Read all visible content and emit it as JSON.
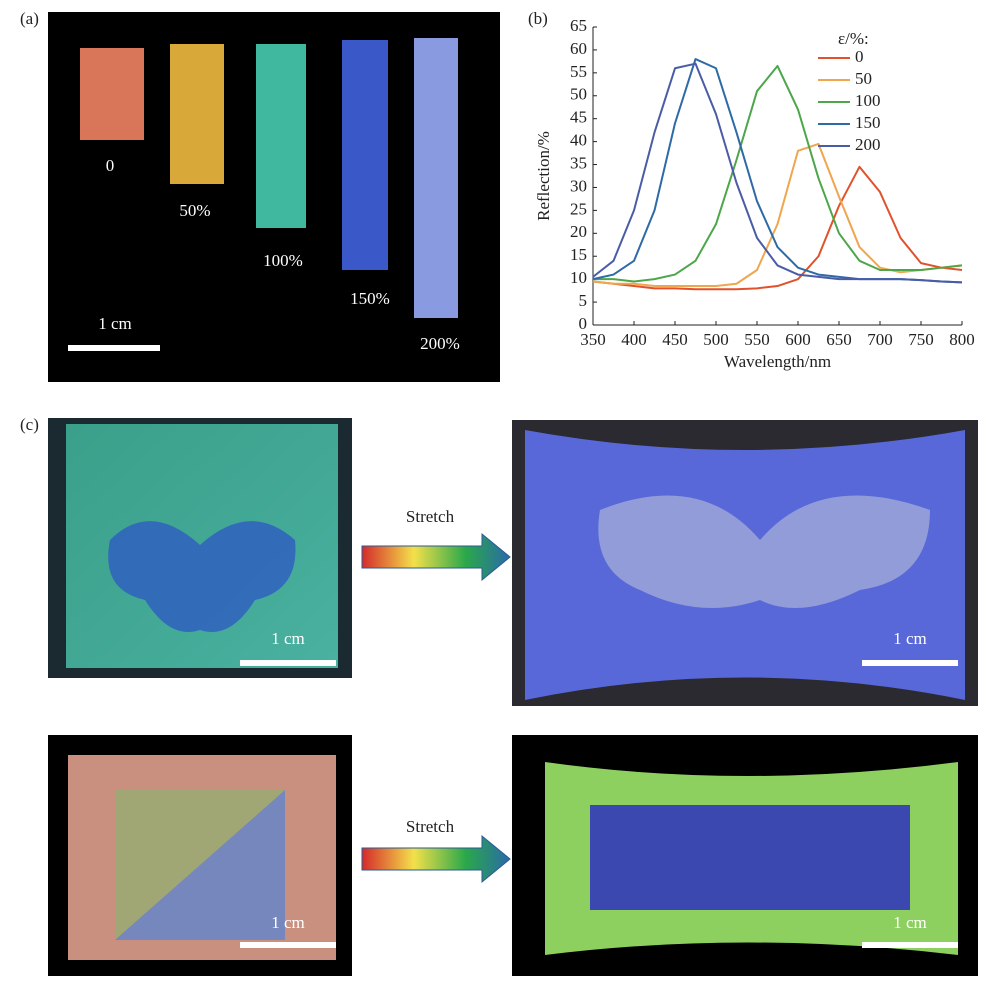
{
  "panel_labels": [
    "(a)",
    "(b)",
    "(c)"
  ],
  "panel_a": {
    "strain_labels": [
      "0",
      "50%",
      "100%",
      "150%",
      "200%"
    ],
    "scale_label": "1 cm"
  },
  "panel_c": {
    "arrow_labels": [
      "Stretch",
      "Stretch"
    ],
    "scale_labels": [
      "1 cm",
      "1 cm",
      "1 cm",
      "1 cm"
    ]
  },
  "chart_data": {
    "type": "line",
    "x_label": "Wavelength/nm",
    "y_label": "Reflection/%",
    "legend_title": "ε/%:",
    "x": [
      350,
      375,
      400,
      425,
      450,
      475,
      500,
      525,
      550,
      575,
      600,
      625,
      650,
      675,
      700,
      725,
      750,
      775,
      800
    ],
    "series": [
      {
        "name": "0",
        "color": "#e0522c",
        "values": [
          9.5,
          9,
          8.5,
          8,
          8,
          7.8,
          7.8,
          7.8,
          8,
          8.5,
          10,
          15,
          26,
          34.5,
          29,
          19,
          13.5,
          12.5,
          12
        ]
      },
      {
        "name": "50",
        "color": "#f0a54f",
        "values": [
          9.5,
          9,
          9,
          8.5,
          8.5,
          8.5,
          8.5,
          9,
          12,
          22,
          38,
          39.5,
          28,
          17,
          12.5,
          11.5,
          12,
          12.5,
          13
        ]
      },
      {
        "name": "100",
        "color": "#4ca64a",
        "values": [
          10,
          10,
          9.5,
          10,
          11,
          14,
          22,
          36,
          51,
          56.5,
          47,
          32,
          20,
          14,
          12,
          12,
          12,
          12.5,
          13
        ]
      },
      {
        "name": "150",
        "color": "#2e6aa6",
        "values": [
          10,
          11,
          14,
          25,
          44,
          58,
          56,
          42,
          27,
          17,
          12.5,
          11,
          10.5,
          10,
          10,
          10,
          9.8,
          9.5,
          9.3
        ]
      },
      {
        "name": "200",
        "color": "#4a5ca6",
        "values": [
          10.5,
          14,
          25,
          42,
          56,
          57,
          46,
          31,
          19,
          13,
          11,
          10.5,
          10,
          10,
          10,
          10,
          9.8,
          9.5,
          9.3
        ]
      }
    ],
    "xlim": [
      350,
      800
    ],
    "xticks": [
      350,
      400,
      450,
      500,
      550,
      600,
      650,
      700,
      750,
      800
    ],
    "ylim": [
      0,
      65
    ],
    "yticks": [
      0,
      5,
      10,
      15,
      20,
      25,
      30,
      35,
      40,
      45,
      50,
      55,
      60,
      65
    ]
  }
}
